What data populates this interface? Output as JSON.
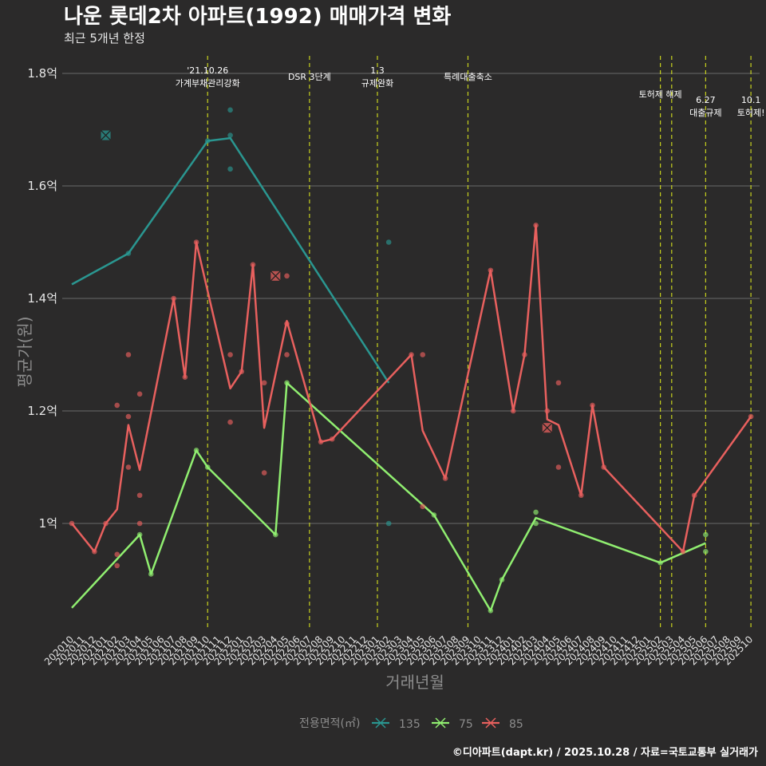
{
  "chart_data": {
    "type": "line",
    "title": "나운 롯데2차 아파트(1992) 매매가격 변화",
    "subtitle": "최근 5개년 한정",
    "xlabel": "거래년월",
    "ylabel": "평균가(원)",
    "caption": "©디아파트(dapt.kr) / 2025.10.28 / 자료=국토교통부 실거래가",
    "legend_title": "전용면적(㎡)",
    "ylim": [
      0.81,
      1.83
    ],
    "yticks": [
      {
        "value": 1.0,
        "label": "1억"
      },
      {
        "value": 1.2,
        "label": "1.2억"
      },
      {
        "value": 1.4,
        "label": "1.4억"
      },
      {
        "value": 1.6,
        "label": "1.6억"
      },
      {
        "value": 1.8,
        "label": "1.8억"
      }
    ],
    "x_labels": [
      "202010",
      "202011",
      "202012",
      "202101",
      "202102",
      "202103",
      "202104",
      "202105",
      "202106",
      "202107",
      "202108",
      "202109",
      "202110",
      "202111",
      "202112",
      "202201",
      "202202",
      "202203",
      "202204",
      "202205",
      "202206",
      "202207",
      "202208",
      "202209",
      "202210",
      "202211",
      "202212",
      "202301",
      "202302",
      "202303",
      "202304",
      "202305",
      "202306",
      "202307",
      "202308",
      "202309",
      "202310",
      "202311",
      "202312",
      "202401",
      "202402",
      "202403",
      "202404",
      "202405",
      "202406",
      "202407",
      "202408",
      "202409",
      "202410",
      "202411",
      "202412",
      "202501",
      "202502",
      "202503",
      "202504",
      "202505",
      "202506",
      "202507",
      "202508",
      "202509",
      "202510"
    ],
    "events": [
      {
        "x": 12,
        "lines": [
          "'21.10.26",
          "가계부채관리강화"
        ],
        "level": 0
      },
      {
        "x": 21,
        "lines": [
          "DSR 3단계"
        ],
        "level": 2
      },
      {
        "x": 27,
        "lines": [
          "1.3",
          "규제완화"
        ],
        "level": 0
      },
      {
        "x": 35,
        "lines": [
          "특례대출축소"
        ],
        "level": 2
      },
      {
        "x": 52,
        "lines": [
          "토허제 해제"
        ],
        "level": 1
      },
      {
        "x": 53,
        "lines": [],
        "level": 1
      },
      {
        "x": 56,
        "lines": [
          "6.27",
          "대출규제"
        ],
        "level": 3
      },
      {
        "x": 60,
        "lines": [
          "10.1",
          "토허제!"
        ],
        "level": 3
      }
    ],
    "series": [
      {
        "name": "135",
        "color": "#2a9690",
        "line": [
          [
            0,
            1.425
          ],
          [
            5,
            1.48
          ],
          [
            12,
            1.68
          ],
          [
            14,
            1.685
          ],
          [
            28,
            1.25
          ]
        ],
        "points": [
          [
            5,
            1.48
          ],
          [
            12,
            1.68
          ],
          [
            14,
            1.735
          ],
          [
            14,
            1.69
          ],
          [
            14,
            1.63
          ],
          [
            28,
            1.5
          ],
          [
            28,
            1.0
          ]
        ],
        "x_marks": [
          [
            3,
            1.69
          ]
        ]
      },
      {
        "name": "75",
        "color": "#90ee70",
        "line": [
          [
            0,
            0.85
          ],
          [
            6,
            0.98
          ],
          [
            7,
            0.91
          ],
          [
            11,
            1.13
          ],
          [
            12,
            1.1
          ],
          [
            18,
            0.98
          ],
          [
            19,
            1.25
          ],
          [
            32,
            1.015
          ],
          [
            37,
            0.845
          ],
          [
            38,
            0.9
          ],
          [
            41,
            1.01
          ],
          [
            52,
            0.93
          ],
          [
            56,
            0.965
          ]
        ],
        "points": [
          [
            6,
            0.98
          ],
          [
            7,
            0.91
          ],
          [
            11,
            1.13
          ],
          [
            12,
            1.1
          ],
          [
            18,
            0.98
          ],
          [
            19,
            1.25
          ],
          [
            32,
            1.015
          ],
          [
            37,
            0.845
          ],
          [
            38,
            0.9
          ],
          [
            41,
            1.02
          ],
          [
            41,
            1.0
          ],
          [
            52,
            0.93
          ],
          [
            56,
            0.98
          ],
          [
            56,
            0.95
          ]
        ],
        "x_marks": []
      },
      {
        "name": "85",
        "color": "#e8605e",
        "line": [
          [
            0,
            1.0
          ],
          [
            2,
            0.95
          ],
          [
            3,
            1.0
          ],
          [
            4,
            1.025
          ],
          [
            5,
            1.175
          ],
          [
            6,
            1.095
          ],
          [
            9,
            1.4
          ],
          [
            10,
            1.26
          ],
          [
            11,
            1.5
          ],
          [
            14,
            1.24
          ],
          [
            15,
            1.27
          ],
          [
            16,
            1.46
          ],
          [
            17,
            1.17
          ],
          [
            19,
            1.36
          ],
          [
            22,
            1.145
          ],
          [
            23,
            1.15
          ],
          [
            30,
            1.3
          ],
          [
            31,
            1.165
          ],
          [
            33,
            1.08
          ],
          [
            37,
            1.45
          ],
          [
            39,
            1.2
          ],
          [
            40,
            1.3
          ],
          [
            41,
            1.53
          ],
          [
            42,
            1.185
          ],
          [
            43,
            1.175
          ],
          [
            45,
            1.05
          ],
          [
            46,
            1.21
          ],
          [
            47,
            1.1
          ],
          [
            54,
            0.95
          ],
          [
            55,
            1.05
          ],
          [
            60,
            1.19
          ]
        ],
        "points": [
          [
            0,
            1.0
          ],
          [
            2,
            0.95
          ],
          [
            3,
            1.0
          ],
          [
            4,
            1.21
          ],
          [
            4,
            0.945
          ],
          [
            4,
            0.925
          ],
          [
            5,
            1.3
          ],
          [
            5,
            1.19
          ],
          [
            5,
            1.1
          ],
          [
            6,
            1.23
          ],
          [
            6,
            1.05
          ],
          [
            6,
            1.0
          ],
          [
            9,
            1.4
          ],
          [
            10,
            1.26
          ],
          [
            11,
            1.5
          ],
          [
            14,
            1.3
          ],
          [
            14,
            1.18
          ],
          [
            15,
            1.27
          ],
          [
            16,
            1.46
          ],
          [
            17,
            1.25
          ],
          [
            17,
            1.09
          ],
          [
            19,
            1.44
          ],
          [
            19,
            1.355
          ],
          [
            19,
            1.3
          ],
          [
            22,
            1.145
          ],
          [
            23,
            1.15
          ],
          [
            30,
            1.3
          ],
          [
            31,
            1.3
          ],
          [
            31,
            1.03
          ],
          [
            33,
            1.08
          ],
          [
            37,
            1.45
          ],
          [
            39,
            1.2
          ],
          [
            40,
            1.3
          ],
          [
            41,
            1.53
          ],
          [
            42,
            1.2
          ],
          [
            43,
            1.25
          ],
          [
            43,
            1.1
          ],
          [
            45,
            1.05
          ],
          [
            46,
            1.21
          ],
          [
            47,
            1.1
          ],
          [
            54,
            0.95
          ],
          [
            55,
            1.05
          ],
          [
            60,
            1.19
          ]
        ],
        "x_marks": [
          [
            18,
            1.44
          ],
          [
            42,
            1.17
          ]
        ]
      }
    ]
  }
}
